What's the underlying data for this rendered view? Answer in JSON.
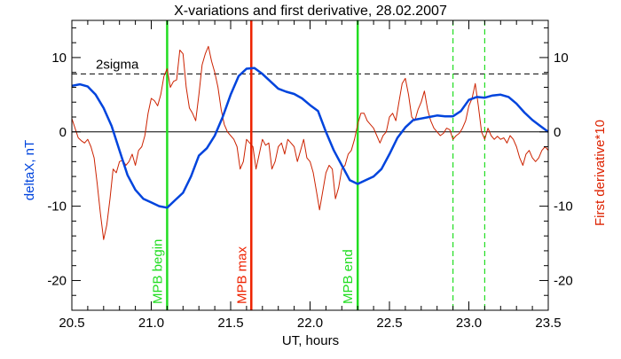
{
  "chart_data": {
    "type": "line",
    "title": "X-variations and first derivative, 28.02.2007",
    "xlabel": "UT, hours",
    "ylabel_left": "deltaX, nT",
    "ylabel_right": "First derivative*10",
    "xlim": [
      20.5,
      23.5
    ],
    "ylim": [
      -24,
      15
    ],
    "x_ticks": [
      20.5,
      21.0,
      21.5,
      22.0,
      22.5,
      23.0,
      23.5
    ],
    "x_tick_labels": [
      "20.5",
      "21.0",
      "21.5",
      "22.0",
      "22.5",
      "23.0",
      "23.5"
    ],
    "y_ticks": [
      -20,
      -10,
      0,
      10
    ],
    "y_tick_labels": [
      "-20",
      "-10",
      "0",
      "10"
    ],
    "grid": false,
    "reference_lines": [
      {
        "type": "horizontal",
        "y": 7.8,
        "style": "dashed",
        "color": "#000000",
        "label": "2sigma"
      },
      {
        "type": "horizontal",
        "y": 0,
        "style": "solid",
        "color": "#000000",
        "label": ""
      }
    ],
    "markers": [
      {
        "x": 21.1,
        "label": "MPB begin",
        "color": "#22dd22",
        "style": "solid"
      },
      {
        "x": 21.63,
        "label": "MPB max",
        "color": "#ee2200",
        "style": "solid"
      },
      {
        "x": 22.3,
        "label": "MPB end",
        "color": "#22dd22",
        "style": "solid"
      },
      {
        "x": 22.9,
        "label": "",
        "color": "#22dd22",
        "style": "dashed"
      },
      {
        "x": 23.1,
        "label": "",
        "color": "#22dd22",
        "style": "dashed"
      }
    ],
    "series": [
      {
        "name": "deltaX, nT",
        "color": "#0044dd",
        "width": 2.5,
        "x": [
          20.5,
          20.55,
          20.6,
          20.65,
          20.7,
          20.75,
          20.8,
          20.85,
          20.9,
          20.95,
          21.0,
          21.05,
          21.1,
          21.15,
          21.2,
          21.25,
          21.3,
          21.35,
          21.4,
          21.45,
          21.5,
          21.55,
          21.6,
          21.65,
          21.7,
          21.75,
          21.8,
          21.85,
          21.9,
          21.95,
          22.0,
          22.05,
          22.1,
          22.15,
          22.2,
          22.25,
          22.3,
          22.35,
          22.4,
          22.45,
          22.5,
          22.55,
          22.6,
          22.65,
          22.7,
          22.75,
          22.8,
          22.85,
          22.9,
          22.95,
          23.0,
          23.05,
          23.1,
          23.15,
          23.2,
          23.25,
          23.3,
          23.35,
          23.4,
          23.45,
          23.5
        ],
        "y": [
          6.2,
          6.4,
          6.1,
          5.0,
          3.2,
          0.8,
          -2.5,
          -5.8,
          -7.8,
          -9.0,
          -9.5,
          -10.0,
          -10.2,
          -9.2,
          -8.2,
          -6.0,
          -3.2,
          -2.2,
          -0.5,
          2.0,
          5.0,
          7.5,
          8.5,
          8.6,
          7.8,
          6.8,
          5.8,
          5.4,
          5.1,
          4.5,
          3.6,
          2.8,
          0.0,
          -2.5,
          -4.5,
          -6.5,
          -7.0,
          -6.5,
          -6.0,
          -5.0,
          -3.0,
          -0.8,
          0.6,
          1.6,
          1.8,
          2.0,
          2.2,
          2.1,
          2.1,
          2.8,
          4.3,
          4.7,
          4.6,
          4.9,
          5.0,
          4.7,
          3.8,
          2.6,
          1.6,
          0.8,
          0.0
        ]
      },
      {
        "name": "First derivative*10",
        "color": "#cc2200",
        "width": 1,
        "x": [
          20.5,
          20.52,
          20.54,
          20.56,
          20.58,
          20.6,
          20.62,
          20.64,
          20.66,
          20.68,
          20.7,
          20.72,
          20.74,
          20.76,
          20.78,
          20.8,
          20.82,
          20.84,
          20.86,
          20.88,
          20.9,
          20.92,
          20.94,
          20.96,
          20.98,
          21.0,
          21.02,
          21.04,
          21.06,
          21.08,
          21.1,
          21.12,
          21.14,
          21.16,
          21.18,
          21.2,
          21.22,
          21.24,
          21.26,
          21.28,
          21.3,
          21.32,
          21.34,
          21.36,
          21.38,
          21.4,
          21.42,
          21.44,
          21.46,
          21.48,
          21.5,
          21.52,
          21.54,
          21.56,
          21.58,
          21.6,
          21.62,
          21.64,
          21.66,
          21.68,
          21.7,
          21.72,
          21.74,
          21.76,
          21.78,
          21.8,
          21.82,
          21.84,
          21.86,
          21.88,
          21.9,
          21.92,
          21.94,
          21.96,
          21.98,
          22.0,
          22.02,
          22.04,
          22.06,
          22.08,
          22.1,
          22.12,
          22.14,
          22.16,
          22.18,
          22.2,
          22.22,
          22.24,
          22.26,
          22.28,
          22.3,
          22.32,
          22.34,
          22.36,
          22.38,
          22.4,
          22.42,
          22.44,
          22.46,
          22.48,
          22.5,
          22.52,
          22.54,
          22.56,
          22.58,
          22.6,
          22.62,
          22.64,
          22.66,
          22.68,
          22.7,
          22.72,
          22.74,
          22.76,
          22.78,
          22.8,
          22.82,
          22.84,
          22.86,
          22.88,
          22.9,
          22.92,
          22.94,
          22.96,
          22.98,
          23.0,
          23.02,
          23.04,
          23.06,
          23.08,
          23.1,
          23.12,
          23.14,
          23.16,
          23.18,
          23.2,
          23.22,
          23.24,
          23.26,
          23.28,
          23.3,
          23.32,
          23.34,
          23.36,
          23.38,
          23.4,
          23.42,
          23.44,
          23.46,
          23.48,
          23.5
        ],
        "y": [
          1.8,
          0.5,
          -0.8,
          -1.2,
          -1.5,
          -1.0,
          -2.0,
          -3.5,
          -7.0,
          -11.0,
          -14.5,
          -12.5,
          -9.0,
          -5.0,
          -5.5,
          -4.0,
          -3.8,
          -4.5,
          -4.0,
          -3.0,
          -4.5,
          -2.5,
          -2.0,
          -0.5,
          2.5,
          4.5,
          4.2,
          3.5,
          5.0,
          7.5,
          8.5,
          6.0,
          6.8,
          7.0,
          11.0,
          10.5,
          6.0,
          3.2,
          2.5,
          1.5,
          5.0,
          9.0,
          10.5,
          11.5,
          9.5,
          8.0,
          6.0,
          3.0,
          1.0,
          0.0,
          -0.5,
          -1.0,
          -2.0,
          -5.0,
          -4.0,
          -1.0,
          -1.5,
          -2.0,
          -5.0,
          -3.0,
          -1.0,
          -1.8,
          -1.5,
          -5.0,
          -4.0,
          -2.0,
          -1.5,
          -3.0,
          -1.0,
          -1.5,
          -2.0,
          -4.0,
          -2.5,
          -1.0,
          -3.5,
          -4.0,
          -5.5,
          -8.0,
          -10.5,
          -8.0,
          -5.5,
          -4.5,
          -5.0,
          -9.0,
          -7.5,
          -5.0,
          -4.5,
          -3.0,
          -2.5,
          -1.0,
          1.0,
          2.5,
          2.5,
          1.5,
          1.0,
          0.5,
          -0.5,
          -1.5,
          -0.5,
          0.0,
          2.0,
          2.5,
          1.5,
          4.0,
          6.5,
          7.2,
          5.0,
          2.0,
          1.5,
          3.0,
          4.0,
          5.5,
          3.0,
          1.5,
          0.5,
          0.0,
          -0.5,
          -0.2,
          0.5,
          0.3,
          -1.0,
          -0.5,
          -0.2,
          0.5,
          1.5,
          3.5,
          4.5,
          6.5,
          3.5,
          0.0,
          -1.0,
          0.5,
          -0.5,
          -1.0,
          -0.6,
          -1.0,
          -0.8,
          -1.5,
          -0.5,
          -1.0,
          -2.0,
          -3.5,
          -4.5,
          -3.0,
          -2.5,
          -3.5,
          -4.0,
          -3.5,
          -2.5,
          -2.0,
          -2.5
        ]
      }
    ]
  }
}
